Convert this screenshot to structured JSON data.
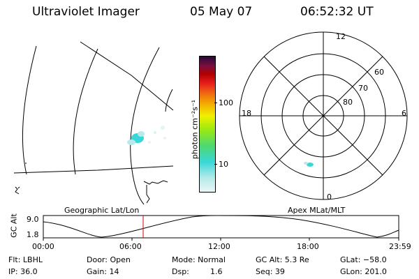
{
  "header": {
    "instrument": "Ultraviolet Imager",
    "date": "05 May 07",
    "time": "06:52:32 UT"
  },
  "geo_panel": {
    "caption": "Geographic Lat/Lon"
  },
  "colorbar": {
    "unit_label": "photon cm⁻²s⁻¹",
    "ticks": [
      "100",
      "10"
    ],
    "colors": [
      "#e8f6f6",
      "#b8eaea",
      "#39d8d8",
      "#4dd870",
      "#9aea12",
      "#f0f000",
      "#f2b400",
      "#f07010",
      "#e81e1e",
      "#b30000",
      "#7a1040",
      "#2a0838"
    ]
  },
  "polar_panel": {
    "caption": "Apex MLat/MLT",
    "mlt_labels": {
      "top": "12",
      "bottom": "0",
      "left": "18",
      "right": "6"
    },
    "lat_labels": [
      "60",
      "70",
      "80"
    ]
  },
  "altitude_plot": {
    "axis_label": "GC Alt",
    "y_ticks": [
      "9.0",
      "1.8"
    ],
    "x_ticks": [
      "00:00",
      "06:00",
      "12:00",
      "18:00",
      "23:59"
    ],
    "current_time_marker": "06:52"
  },
  "info": {
    "flt": "Flt: LBHL",
    "ip": "IP: 36.0",
    "door": "Door: Open",
    "gain": "Gain: 14",
    "mode": "Mode: Normal",
    "dsp_label": "Dsp:",
    "dsp_value": "1.6",
    "gcalt": "GC Alt: 5.3 Re",
    "seq": "Seq: 39",
    "glat": "GLat: −58.0",
    "glon": "GLon: 201.0"
  }
}
